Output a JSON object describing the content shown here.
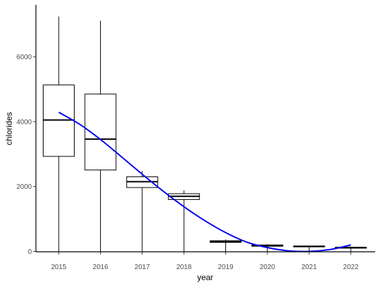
{
  "chart_data": {
    "type": "box",
    "xlabel": "year",
    "ylabel": "chlorides",
    "categories": [
      "2015",
      "2016",
      "2017",
      "2018",
      "2019",
      "2020",
      "2021",
      "2022"
    ],
    "y_ticks": [
      0,
      2000,
      4000,
      6000
    ],
    "ylim": [
      -100,
      7550
    ],
    "boxes": [
      {
        "category": "2015",
        "min": 0,
        "q1": 2930,
        "median": 4050,
        "q3": 5130,
        "max": 7240
      },
      {
        "category": "2016",
        "min": 0,
        "q1": 2510,
        "median": 3460,
        "q3": 4850,
        "max": 7110
      },
      {
        "category": "2017",
        "min": 0,
        "q1": 1970,
        "median": 2150,
        "q3": 2300,
        "max": 2480
      },
      {
        "category": "2018",
        "min": 0,
        "q1": 1600,
        "median": 1700,
        "q3": 1780,
        "max": 1880
      },
      {
        "category": "2019",
        "min": 0,
        "q1": 280,
        "median": 310,
        "q3": 330,
        "max": 370
      },
      {
        "category": "2020",
        "min": 0,
        "q1": 160,
        "median": 180,
        "q3": 200,
        "max": 220
      },
      {
        "category": "2021",
        "min": 0,
        "q1": 140,
        "median": 160,
        "q3": 170,
        "max": 180
      },
      {
        "category": "2022",
        "min": 0,
        "q1": 100,
        "median": 120,
        "q3": 130,
        "max": 140
      }
    ],
    "trend": {
      "type": "smooth",
      "color": "#0000ee",
      "points": [
        {
          "x": 2015,
          "y": 4290
        },
        {
          "x": 2015.5,
          "y": 3920
        },
        {
          "x": 2016,
          "y": 3450
        },
        {
          "x": 2016.5,
          "y": 2920
        },
        {
          "x": 2017,
          "y": 2380
        },
        {
          "x": 2017.5,
          "y": 1860
        },
        {
          "x": 2018,
          "y": 1380
        },
        {
          "x": 2018.5,
          "y": 950
        },
        {
          "x": 2019,
          "y": 580
        },
        {
          "x": 2019.5,
          "y": 290
        },
        {
          "x": 2020,
          "y": 120
        },
        {
          "x": 2020.5,
          "y": 20
        },
        {
          "x": 2021,
          "y": 0
        },
        {
          "x": 2021.5,
          "y": 60
        },
        {
          "x": 2022,
          "y": 200
        }
      ]
    },
    "box_color": "#000000",
    "grid": false
  }
}
